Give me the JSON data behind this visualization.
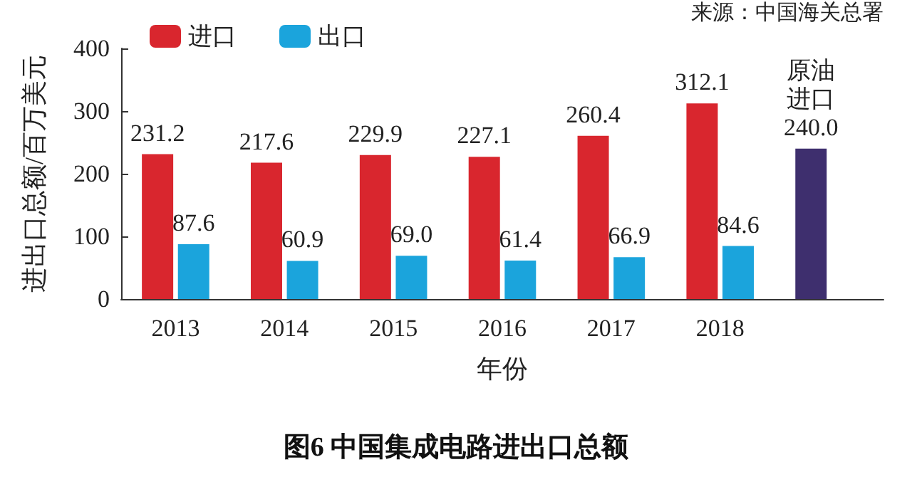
{
  "chart_data": {
    "type": "bar",
    "title": "图6 中国集成电路进出口总额",
    "xlabel": "年份",
    "ylabel": "进出口总额/百万美元",
    "annotations": [
      "来源：中国海关总署"
    ],
    "categories": [
      "2013",
      "2014",
      "2015",
      "2016",
      "2017",
      "2018",
      null
    ],
    "series": [
      {
        "name": "进口",
        "color": "#d9262e",
        "values": [
          231.2,
          217.6,
          229.9,
          227.1,
          260.4,
          312.1,
          null
        ],
        "value_labels": [
          "231.2",
          "217.6",
          "229.9",
          "227.1",
          "260.4",
          "312.1",
          null
        ]
      },
      {
        "name": "出口",
        "color": "#1ba4dc",
        "values": [
          87.6,
          60.9,
          69.0,
          61.4,
          66.9,
          84.6,
          null
        ],
        "value_labels": [
          "87.6",
          "60.9",
          "69.0",
          "61.4",
          "66.9",
          "84.6",
          null
        ]
      },
      {
        "name": "原油进口",
        "color": "#3e2f6e",
        "values": [
          null,
          null,
          null,
          null,
          null,
          null,
          240.0
        ],
        "value_labels": [
          null,
          null,
          null,
          null,
          null,
          null,
          "240.0"
        ]
      }
    ],
    "ylim": [
      0,
      400
    ],
    "yticks": [
      0,
      100,
      200,
      300,
      400
    ],
    "grid": false,
    "legend": "top left"
  }
}
